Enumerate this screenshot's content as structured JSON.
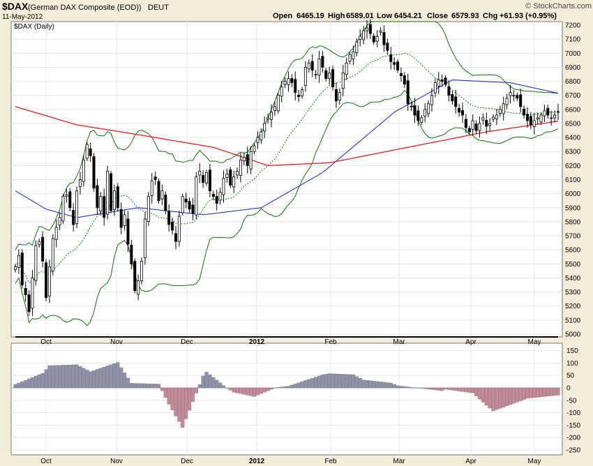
{
  "header": {
    "symbol": "$DAX",
    "name": "(German DAX Composite (EOD))",
    "exchange": "DEUT",
    "date": "11-May-2012",
    "brand": "© StockCharts.com",
    "open_label": "Open",
    "open_value": "6465.19",
    "high_label": "High",
    "high_value": "6589.01",
    "low_label": "Low",
    "low_value": "6454.21",
    "close_label": "Close",
    "close_value": "6579.93",
    "chg_label": "Chg",
    "chg_value": "+61.93 (+0.95%)"
  },
  "panel_label": "$DAX (Daily)",
  "colors": {
    "background": "#f2ecd8",
    "plot_bg": "#ffffff",
    "ma_200": "#e02020",
    "ma_50": "#1a1ad0",
    "bollinger": "#107010",
    "macd_line": "#000000",
    "signal_line": "#555555",
    "hist_pos": "#8f92a8",
    "hist_neg": "#c48a9a"
  },
  "chart_data": [
    {
      "type": "candlestick",
      "title": "$DAX (Daily)",
      "x_labels": [
        "Oct",
        "Nov",
        "Dec",
        "2012",
        "Feb",
        "Mar",
        "Apr",
        "May"
      ],
      "y_ticks": [
        5000,
        5100,
        5200,
        5300,
        5400,
        5500,
        5600,
        5700,
        5800,
        5900,
        6000,
        6100,
        6200,
        6300,
        6400,
        6500,
        6600,
        6700,
        6800,
        6900,
        7000,
        7100,
        7200
      ],
      "ylim": [
        4980,
        7225
      ],
      "x_count": 160,
      "close": [
        5480,
        5560,
        5350,
        5280,
        5160,
        5400,
        5630,
        5660,
        5520,
        5260,
        5480,
        5680,
        5760,
        5830,
        5980,
        5990,
        5900,
        5780,
        6020,
        6100,
        6240,
        6350,
        6270,
        6040,
        5900,
        5980,
        5830,
        6160,
        5880,
        6020,
        5900,
        5760,
        5850,
        5640,
        5500,
        5310,
        5380,
        5520,
        5820,
        5980,
        6090,
        6100,
        5950,
        6020,
        5880,
        5780,
        5740,
        5660,
        5840,
        5980,
        5940,
        5890,
        5860,
        6120,
        6160,
        6080,
        6150,
        6020,
        5980,
        5930,
        6010,
        6110,
        6140,
        6060,
        6120,
        6160,
        6240,
        6260,
        6200,
        6300,
        6340,
        6400,
        6440,
        6500,
        6540,
        6580,
        6620,
        6700,
        6760,
        6800,
        6820,
        6790,
        6720,
        6690,
        6740,
        6900,
        6930,
        6880,
        6850,
        6960,
        6900,
        6820,
        6860,
        6760,
        6660,
        6720,
        6860,
        6930,
        6990,
        7010,
        7080,
        7120,
        7160,
        7180,
        7140,
        7080,
        7120,
        7160,
        7060,
        7020,
        6940,
        6920,
        6880,
        6840,
        6780,
        6640,
        6620,
        6560,
        6520,
        6540,
        6600,
        6640,
        6700,
        6790,
        6810,
        6800,
        6780,
        6700,
        6660,
        6620,
        6580,
        6560,
        6470,
        6440,
        6520,
        6450,
        6500,
        6540,
        6480,
        6500,
        6545,
        6560,
        6600,
        6640,
        6680,
        6720,
        6700,
        6680,
        6620,
        6560,
        6520,
        6490,
        6520,
        6540,
        6560,
        6590,
        6560,
        6540,
        6560,
        6579.93
      ],
      "high": 6589.01,
      "low": 6454.21,
      "ma_200_anchor": [
        [
          0,
          6620
        ],
        [
          18,
          6490
        ],
        [
          36,
          6420
        ],
        [
          58,
          6330
        ],
        [
          74,
          6200
        ],
        [
          92,
          6220
        ],
        [
          115,
          6330
        ],
        [
          138,
          6440
        ],
        [
          160,
          6520
        ]
      ],
      "ma_50_anchor": [
        [
          0,
          6020
        ],
        [
          9,
          5890
        ],
        [
          18,
          5830
        ],
        [
          36,
          5900
        ],
        [
          55,
          5850
        ],
        [
          72,
          5900
        ],
        [
          90,
          6150
        ],
        [
          111,
          6580
        ],
        [
          128,
          6810
        ],
        [
          145,
          6790
        ],
        [
          160,
          6710
        ]
      ]
    },
    {
      "type": "macd",
      "x_labels": [
        "Oct",
        "Nov",
        "Dec",
        "2012",
        "Feb",
        "Mar",
        "Apr",
        "May"
      ],
      "y_ticks": [
        150,
        100,
        50,
        0,
        -50,
        -100,
        -150,
        -200,
        -250
      ],
      "ylim": [
        -270,
        180
      ],
      "macd_anchor": [
        [
          0,
          -230
        ],
        [
          8,
          -150
        ],
        [
          18,
          20
        ],
        [
          30,
          160
        ],
        [
          42,
          80
        ],
        [
          49,
          -100
        ],
        [
          56,
          10
        ],
        [
          62,
          -10
        ],
        [
          70,
          -20
        ],
        [
          80,
          30
        ],
        [
          90,
          100
        ],
        [
          99,
          150
        ],
        [
          110,
          160
        ],
        [
          126,
          130
        ],
        [
          134,
          70
        ],
        [
          140,
          -20
        ],
        [
          150,
          -50
        ],
        [
          160,
          -80
        ]
      ],
      "signal_anchor": [
        [
          0,
          -240
        ],
        [
          10,
          -180
        ],
        [
          22,
          20
        ],
        [
          34,
          120
        ],
        [
          45,
          50
        ],
        [
          55,
          -40
        ],
        [
          64,
          0
        ],
        [
          76,
          10
        ],
        [
          92,
          70
        ],
        [
          102,
          130
        ],
        [
          112,
          150
        ],
        [
          125,
          140
        ],
        [
          138,
          60
        ],
        [
          150,
          -20
        ],
        [
          160,
          -60
        ]
      ]
    }
  ]
}
